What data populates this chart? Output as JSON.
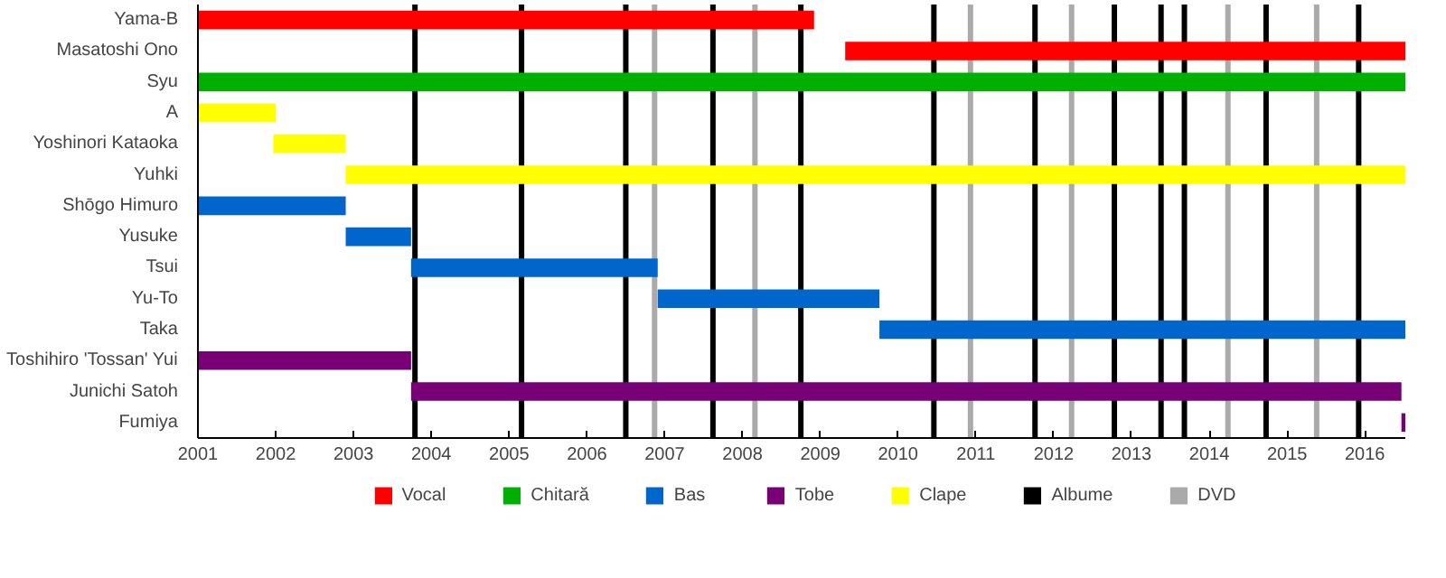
{
  "chart_data": {
    "type": "bar",
    "orientation": "horizontal",
    "categories": [
      "Yama-B",
      "Masatoshi Ono",
      "Syu",
      "A",
      "Yoshinori Kataoka",
      "Yuhki",
      "Shōgo Himuro",
      "Yusuke",
      "Tsui",
      "Yu-To",
      "Taka",
      "Toshihiro 'Tossan' Yui",
      "Junichi Satoh",
      "Fumiya"
    ],
    "series": [
      {
        "name": "Vocal",
        "color": "#ff0000",
        "base": [
          2001,
          2009.32,
          null,
          null,
          null,
          null,
          null,
          null,
          null,
          null,
          null,
          null,
          null,
          null
        ],
        "values": [
          7.92,
          7.2,
          null,
          null,
          null,
          null,
          null,
          null,
          null,
          null,
          null,
          null,
          null,
          null
        ]
      },
      {
        "name": "Chitară",
        "color": "#00b000",
        "base": [
          null,
          null,
          2001,
          null,
          null,
          null,
          null,
          null,
          null,
          null,
          null,
          null,
          null,
          null
        ],
        "values": [
          null,
          null,
          15.52,
          null,
          null,
          null,
          null,
          null,
          null,
          null,
          null,
          null,
          null,
          null
        ]
      },
      {
        "name": "Bas",
        "color": "#0066cc",
        "base": [
          null,
          null,
          null,
          null,
          null,
          null,
          2001,
          2002.9,
          2003.74,
          2006.91,
          2009.76,
          null,
          null,
          null
        ],
        "values": [
          null,
          null,
          null,
          null,
          null,
          null,
          1.9,
          0.84,
          3.17,
          2.85,
          6.76,
          null,
          null,
          null
        ]
      },
      {
        "name": "Tobe",
        "color": "#770077",
        "base": [
          null,
          null,
          null,
          null,
          null,
          null,
          null,
          null,
          null,
          null,
          null,
          2001,
          2003.74,
          2016.47
        ],
        "values": [
          null,
          null,
          null,
          null,
          null,
          null,
          null,
          null,
          null,
          null,
          null,
          2.74,
          12.73,
          0.05
        ]
      },
      {
        "name": "Clape",
        "color": "#ffff00",
        "base": [
          null,
          null,
          null,
          2001,
          2001.97,
          2002.9,
          null,
          null,
          null,
          null,
          null,
          null,
          null,
          null
        ],
        "values": [
          null,
          null,
          null,
          1.0,
          0.93,
          13.62,
          null,
          null,
          null,
          null,
          null,
          null,
          null,
          null
        ]
      }
    ],
    "ref_lines": [
      {
        "axis": "x",
        "value": 2003.79,
        "label": "Albume",
        "color": "#000000"
      },
      {
        "axis": "x",
        "value": 2005.16,
        "label": null,
        "color": "#000000"
      },
      {
        "axis": "x",
        "value": 2006.5,
        "label": null,
        "color": "#000000"
      },
      {
        "axis": "x",
        "value": 2007.62,
        "label": null,
        "color": "#000000"
      },
      {
        "axis": "x",
        "value": 2008.75,
        "label": null,
        "color": "#000000"
      },
      {
        "axis": "x",
        "value": 2010.46,
        "label": null,
        "color": "#000000"
      },
      {
        "axis": "x",
        "value": 2011.76,
        "label": null,
        "color": "#000000"
      },
      {
        "axis": "x",
        "value": 2012.78,
        "label": null,
        "color": "#000000"
      },
      {
        "axis": "x",
        "value": 2013.38,
        "label": null,
        "color": "#000000"
      },
      {
        "axis": "x",
        "value": 2013.68,
        "label": null,
        "color": "#000000"
      },
      {
        "axis": "x",
        "value": 2014.73,
        "label": null,
        "color": "#000000"
      },
      {
        "axis": "x",
        "value": 2015.92,
        "label": null,
        "color": "#000000"
      },
      {
        "axis": "x",
        "value": 2006.87,
        "label": "DVD",
        "color": "#aaaaaa"
      },
      {
        "axis": "x",
        "value": 2008.16,
        "label": null,
        "color": "#aaaaaa"
      },
      {
        "axis": "x",
        "value": 2010.93,
        "label": null,
        "color": "#aaaaaa"
      },
      {
        "axis": "x",
        "value": 2012.23,
        "label": null,
        "color": "#aaaaaa"
      },
      {
        "axis": "x",
        "value": 2014.24,
        "label": null,
        "color": "#aaaaaa"
      },
      {
        "axis": "x",
        "value": 2015.38,
        "label": null,
        "color": "#aaaaaa"
      }
    ],
    "xlim": [
      2001,
      2016.52
    ],
    "xticks": [
      2001,
      2002,
      2003,
      2004,
      2005,
      2006,
      2007,
      2008,
      2009,
      2010,
      2011,
      2012,
      2013,
      2014,
      2015,
      2016
    ],
    "grid": false,
    "legend": "bottom"
  }
}
